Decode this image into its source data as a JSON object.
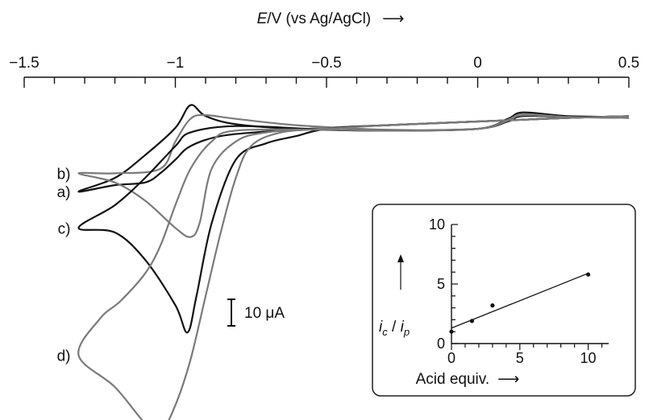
{
  "chart_data": [
    {
      "type": "line",
      "title": "",
      "xlabel": {
        "var": "E",
        "rest": "/V (vs Ag/AgCl)",
        "arrow": "⟶"
      },
      "xlim": [
        -1.5,
        0.5
      ],
      "x_ticks": [
        -1.5,
        -1,
        -0.5,
        0,
        0.5
      ],
      "x_tick_labels": [
        "−1.5",
        "−1",
        "−0.5",
        "0",
        "0.5"
      ],
      "x_axis_position": "top",
      "reversed_x_scan": true,
      "grid": false,
      "scale_bar": {
        "label": "10 μA",
        "value_uA": 10
      },
      "series": [
        {
          "name": "a)",
          "color": "#111111",
          "forward": [
            [
              0.5,
              0.2
            ],
            [
              0.3,
              0.4
            ],
            [
              0.15,
              0.6
            ],
            [
              0.0,
              0.8
            ],
            [
              -0.3,
              1.2
            ],
            [
              -0.5,
              1.5
            ],
            [
              -0.7,
              1.9
            ],
            [
              -0.85,
              2.4
            ],
            [
              -0.95,
              3.5
            ],
            [
              -1.0,
              5.0
            ],
            [
              -1.05,
              6.5
            ],
            [
              -1.1,
              7.5
            ],
            [
              -1.2,
              7.8
            ],
            [
              -1.32,
              8.5
            ]
          ],
          "reverse": [
            [
              -1.32,
              8.5
            ],
            [
              -1.2,
              7.0
            ],
            [
              -1.1,
              4.5
            ],
            [
              -1.0,
              1.5
            ],
            [
              -0.95,
              -1.0
            ],
            [
              -0.9,
              0.2
            ],
            [
              -0.8,
              1.1
            ],
            [
              -0.6,
              1.6
            ],
            [
              -0.3,
              1.8
            ],
            [
              0.0,
              1.6
            ],
            [
              0.1,
              0.5
            ],
            [
              0.15,
              -0.2
            ],
            [
              0.3,
              0.2
            ],
            [
              0.5,
              0.3
            ]
          ]
        },
        {
          "name": "b)",
          "color": "#7a7a7a",
          "forward": [
            [
              0.5,
              0.2
            ],
            [
              0.3,
              0.4
            ],
            [
              0.15,
              0.6
            ],
            [
              0.0,
              0.8
            ],
            [
              -0.3,
              1.2
            ],
            [
              -0.5,
              1.5
            ],
            [
              -0.7,
              2.0
            ],
            [
              -0.8,
              3.0
            ],
            [
              -0.88,
              6.0
            ],
            [
              -0.92,
              12.0
            ],
            [
              -0.95,
              13.5
            ],
            [
              -1.0,
              12.5
            ],
            [
              -1.1,
              9.5
            ],
            [
              -1.2,
              7.5
            ],
            [
              -1.32,
              6.5
            ]
          ],
          "reverse": [
            [
              -1.32,
              6.5
            ],
            [
              -1.2,
              6.5
            ],
            [
              -1.05,
              6.0
            ],
            [
              -1.0,
              3.0
            ],
            [
              -0.95,
              0.5
            ],
            [
              -0.9,
              0.1
            ],
            [
              -0.8,
              0.5
            ],
            [
              -0.6,
              1.2
            ],
            [
              -0.3,
              1.7
            ],
            [
              0.0,
              1.6
            ],
            [
              0.1,
              0.6
            ],
            [
              0.15,
              0.0
            ],
            [
              0.3,
              0.3
            ],
            [
              0.5,
              0.4
            ]
          ]
        },
        {
          "name": "c)",
          "color": "#111111",
          "forward": [
            [
              0.5,
              0.2
            ],
            [
              0.3,
              0.4
            ],
            [
              0.15,
              0.6
            ],
            [
              0.0,
              0.8
            ],
            [
              -0.3,
              1.2
            ],
            [
              -0.5,
              1.6
            ],
            [
              -0.6,
              2.4
            ],
            [
              -0.7,
              3.2
            ],
            [
              -0.8,
              5.0
            ],
            [
              -0.88,
              12.0
            ],
            [
              -0.93,
              20.0
            ],
            [
              -0.96,
              24.0
            ],
            [
              -1.0,
              21.0
            ],
            [
              -1.1,
              16.0
            ],
            [
              -1.2,
              13.0
            ],
            [
              -1.32,
              12.5
            ]
          ],
          "reverse": [
            [
              -1.32,
              12.5
            ],
            [
              -1.2,
              10.0
            ],
            [
              -1.1,
              7.0
            ],
            [
              -1.0,
              3.5
            ],
            [
              -0.95,
              2.0
            ],
            [
              -0.8,
              1.3
            ],
            [
              -0.5,
              1.7
            ],
            [
              -0.3,
              1.8
            ],
            [
              0.0,
              1.6
            ],
            [
              0.1,
              0.8
            ],
            [
              0.15,
              0.2
            ],
            [
              0.3,
              0.3
            ],
            [
              0.5,
              0.4
            ]
          ]
        },
        {
          "name": "d)",
          "color": "#7a7a7a",
          "forward": [
            [
              0.5,
              0.2
            ],
            [
              0.3,
              0.4
            ],
            [
              0.15,
              0.6
            ],
            [
              0.0,
              0.8
            ],
            [
              -0.3,
              1.2
            ],
            [
              -0.5,
              1.6
            ],
            [
              -0.65,
              2.0
            ],
            [
              -0.75,
              3.5
            ],
            [
              -0.8,
              7.0
            ],
            [
              -0.85,
              13.0
            ],
            [
              -0.9,
              20.0
            ],
            [
              -0.95,
              27.0
            ],
            [
              -1.0,
              32.0
            ],
            [
              -1.05,
              35.0
            ],
            [
              -1.1,
              34.0
            ],
            [
              -1.2,
              30.0
            ],
            [
              -1.32,
              26.5
            ]
          ],
          "reverse": [
            [
              -1.32,
              26.5
            ],
            [
              -1.25,
              22.5
            ],
            [
              -1.18,
              20.5
            ],
            [
              -1.1,
              17.5
            ],
            [
              -1.05,
              14.5
            ],
            [
              -1.0,
              10.0
            ],
            [
              -0.95,
              6.0
            ],
            [
              -0.88,
              3.0
            ],
            [
              -0.8,
              1.8
            ],
            [
              -0.5,
              1.7
            ],
            [
              -0.3,
              1.8
            ],
            [
              0.0,
              1.6
            ],
            [
              0.1,
              0.7
            ],
            [
              0.15,
              0.1
            ],
            [
              0.3,
              0.3
            ],
            [
              0.5,
              0.4
            ]
          ]
        }
      ]
    },
    {
      "type": "scatter",
      "title": "",
      "xlabel": "Acid equiv.",
      "xlabel_arrow": "⟶",
      "ylabel": {
        "i1": "i",
        "sub1": "c",
        "sep": " / ",
        "i2": "i",
        "sub2": "p"
      },
      "xlim": [
        0,
        11.5
      ],
      "ylim": [
        0,
        10
      ],
      "x_ticks": [
        0,
        5,
        10
      ],
      "x_tick_labels": [
        "0",
        "5",
        "10"
      ],
      "y_ticks": [
        0,
        5,
        10
      ],
      "y_tick_labels": [
        "0",
        "5",
        "10"
      ],
      "points": [
        [
          0,
          1.0
        ],
        [
          1.5,
          1.9
        ],
        [
          3.0,
          3.2
        ],
        [
          10,
          5.8
        ]
      ],
      "fit_line": [
        [
          0,
          1.3
        ],
        [
          10,
          5.9
        ]
      ]
    }
  ]
}
